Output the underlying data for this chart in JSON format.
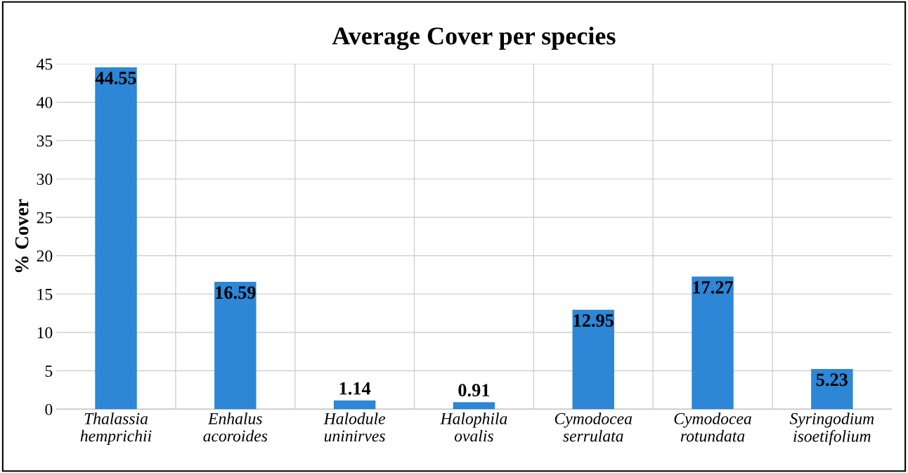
{
  "chart_data": {
    "type": "bar",
    "title": "Average Cover per species",
    "ylabel": "% Cover",
    "categories": [
      "Thalassia\nhemprichii",
      "Enhalus\nacoroides",
      "Halodule\nuninirves",
      "Halophila\novalis",
      "Cymodocea\nserrulata",
      "Cymodocea\nrotundata",
      "Syringodium\nisoetifolium"
    ],
    "values": [
      44.55,
      16.59,
      1.14,
      0.91,
      12.95,
      17.27,
      5.23
    ],
    "color": "#2d86d6",
    "data_labels": true,
    "ylim": [
      0,
      45
    ],
    "yticks": [
      0,
      5,
      10,
      15,
      20,
      25,
      30,
      35,
      40,
      45
    ],
    "grid": true
  }
}
